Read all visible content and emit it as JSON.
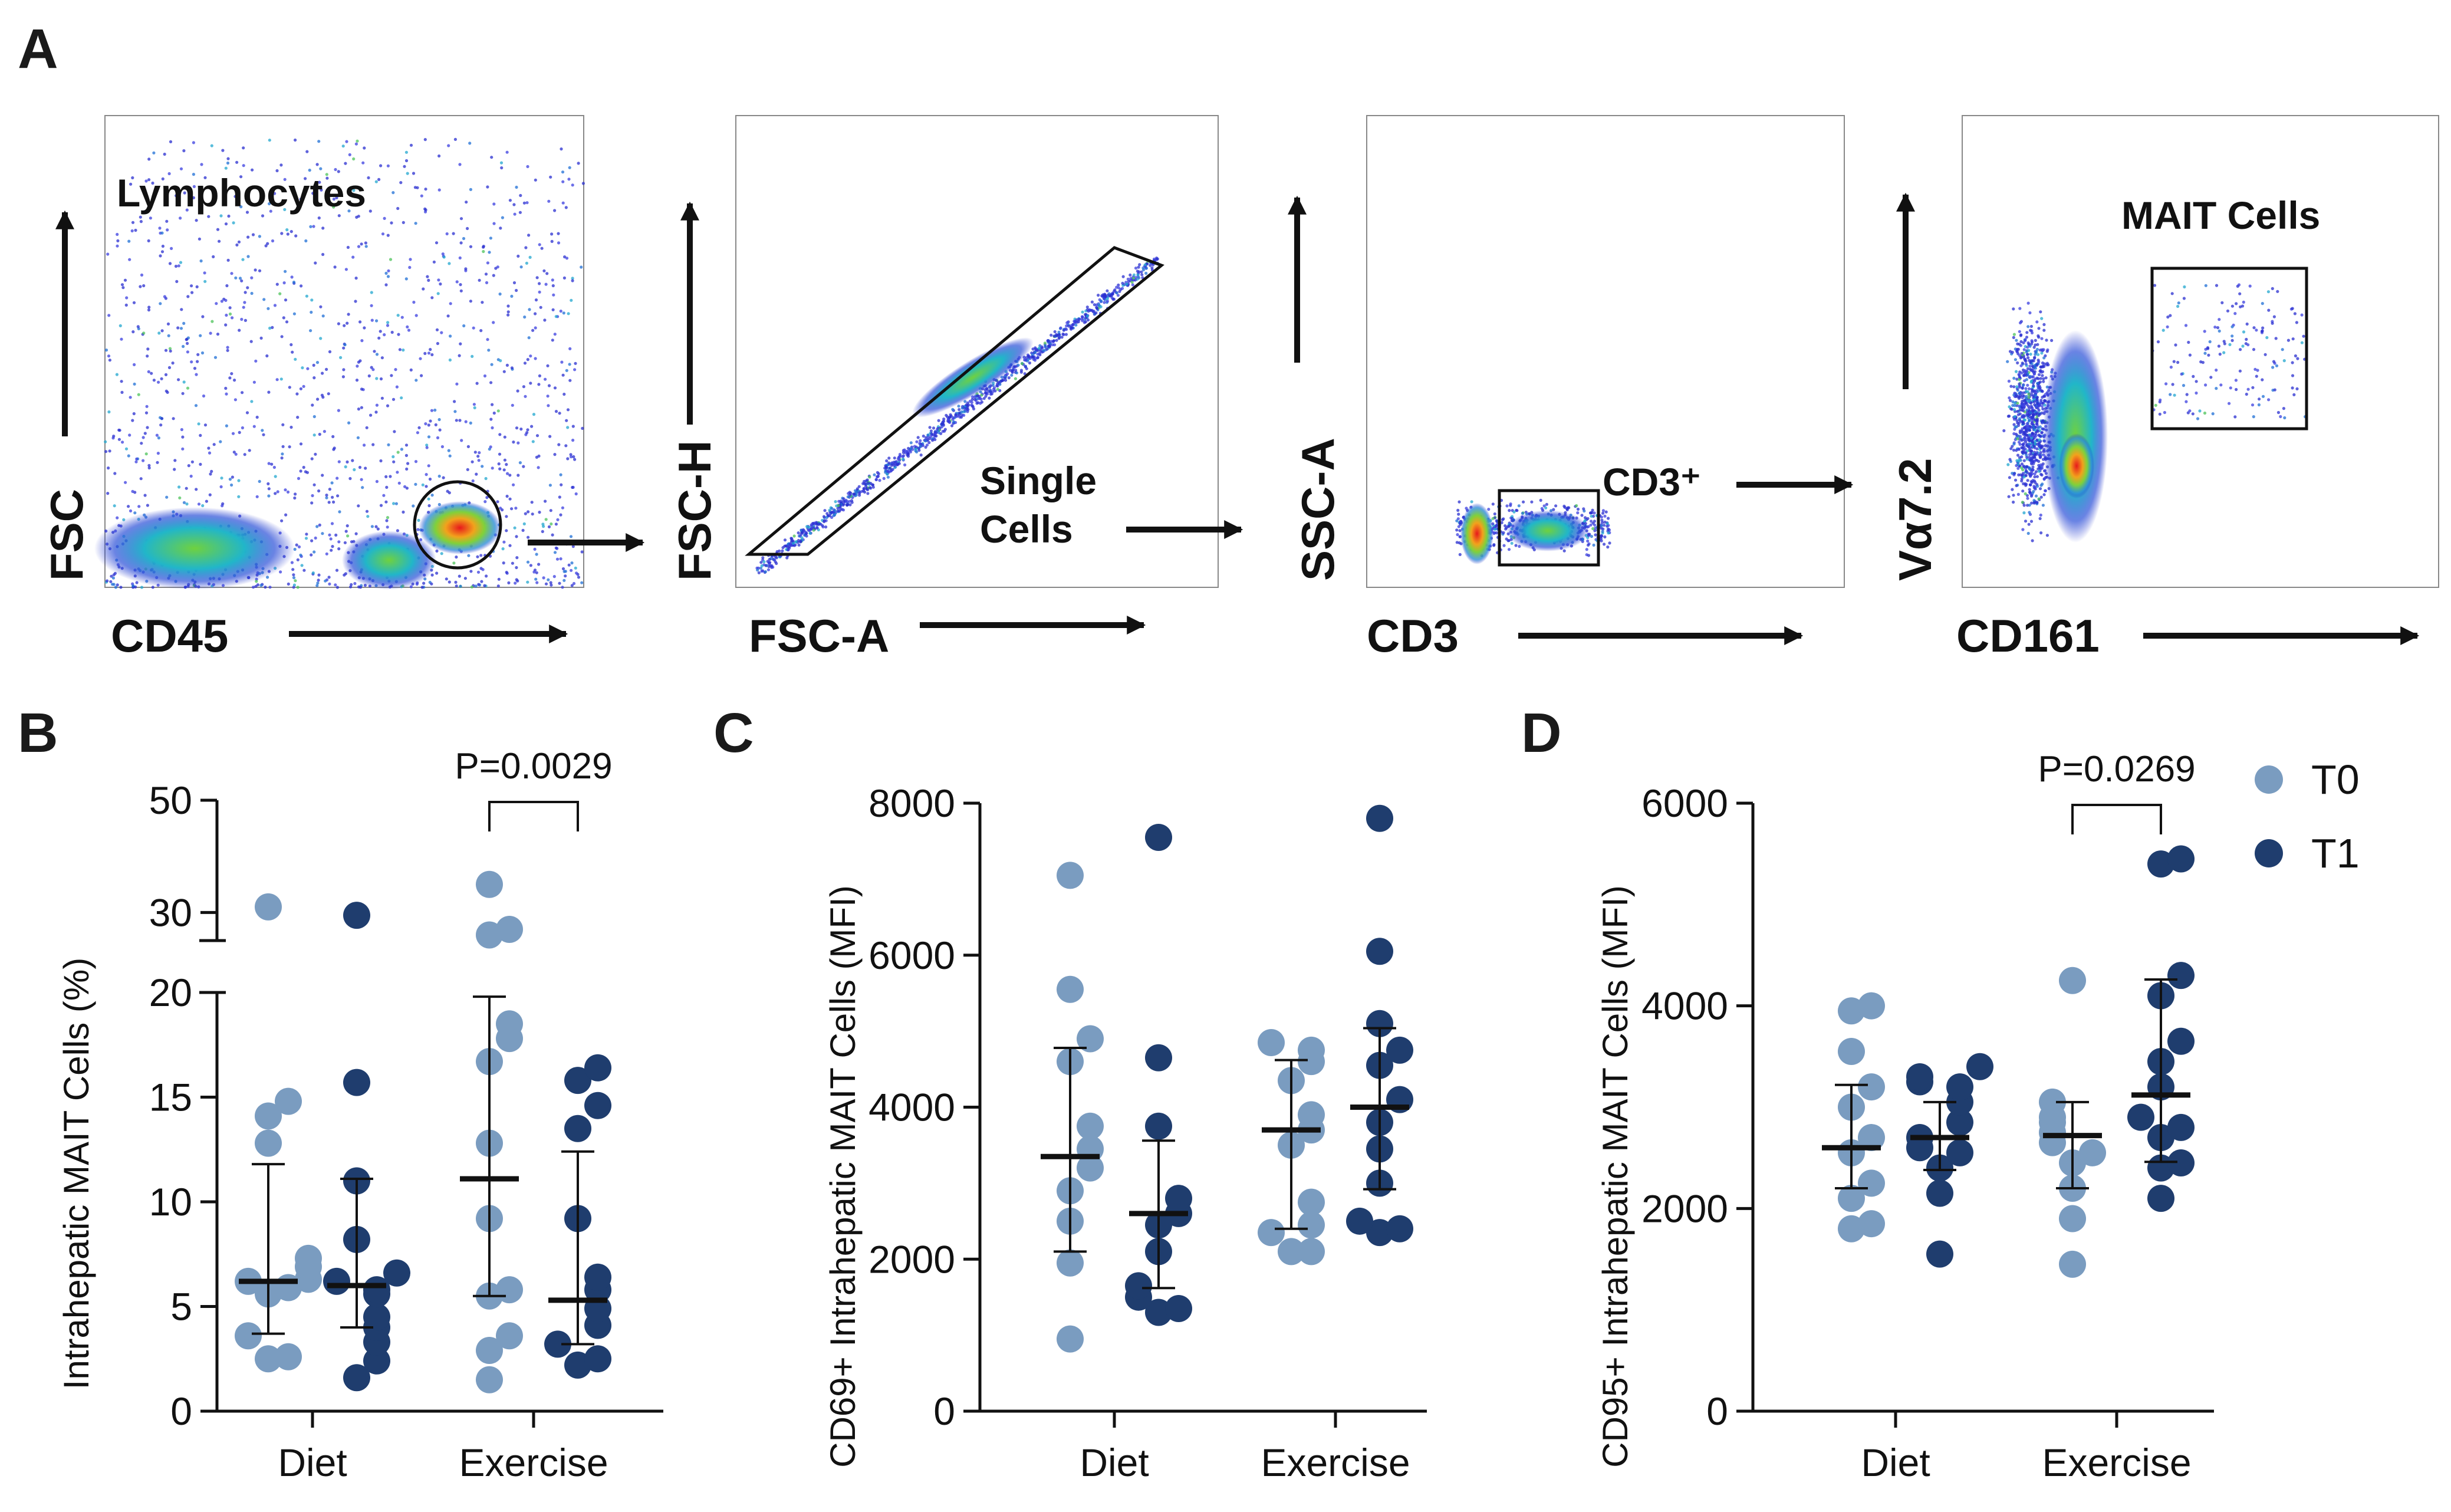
{
  "colors": {
    "t0": "#7a9cc0",
    "t1": "#1f3d6e",
    "axis": "#111111"
  },
  "panel_a": {
    "letter": "A",
    "plots": [
      {
        "id": "cd45",
        "x_label": "CD45",
        "y_label": "FSC",
        "gate_label": "Lymphocytes"
      },
      {
        "id": "fsca",
        "x_label": "FSC-A",
        "y_label": "FSC-H",
        "gate_label": "Single\nCells"
      },
      {
        "id": "cd3",
        "x_label": "CD3",
        "y_label": "SSC-A",
        "gate_label": "CD3⁺"
      },
      {
        "id": "cd161",
        "x_label": "CD161",
        "y_label": "Vα7.2",
        "gate_label": "MAIT Cells"
      }
    ]
  },
  "legend": {
    "entries": [
      "T0",
      "T1"
    ]
  },
  "chart_data": [
    {
      "panel": "B",
      "type": "scatter",
      "ylabel": "Intrahepatic MAIT Cells (%)",
      "categories": [
        "Diet",
        "Exercise"
      ],
      "axis_break": {
        "lower": [
          0,
          20
        ],
        "upper": [
          25,
          50
        ]
      },
      "yticks": [
        0,
        5,
        10,
        15,
        20,
        30,
        50
      ],
      "pvalue": {
        "label": "P=0.0029",
        "category": "Exercise"
      },
      "series": [
        {
          "name": "T0",
          "groups": [
            {
              "category": "Diet",
              "points": [
                31,
                14.8,
                14.1,
                12.8,
                7.3,
                6.9,
                6.3,
                6.2,
                5.9,
                5.6,
                3.6,
                2.6,
                2.5
              ],
              "mean": 6.2,
              "err": [
                3.7,
                11.8
              ]
            },
            {
              "category": "Exercise",
              "points": [
                35,
                27,
                26,
                18.5,
                17.8,
                16.7,
                12.8,
                9.2,
                5.8,
                5.5,
                3.6,
                2.9,
                1.5
              ],
              "mean": 11.1,
              "err": [
                5.5,
                19.8
              ]
            }
          ]
        },
        {
          "name": "T1",
          "groups": [
            {
              "category": "Diet",
              "points": [
                29.5,
                15.7,
                11.0,
                8.2,
                6.6,
                6.2,
                5.8,
                5.6,
                4.5,
                4.0,
                3.3,
                2.4,
                1.6
              ],
              "mean": 6.0,
              "err": [
                4.0,
                11.1
              ]
            },
            {
              "category": "Exercise",
              "points": [
                16.4,
                15.8,
                14.6,
                13.5,
                9.2,
                6.4,
                5.8,
                4.9,
                4.1,
                3.2,
                2.5,
                2.2
              ],
              "mean": 5.3,
              "err": [
                3.2,
                12.4
              ]
            }
          ]
        }
      ]
    },
    {
      "panel": "C",
      "type": "scatter",
      "ylabel": "CD69+ Intrahepatic MAIT Cells (MFI)",
      "categories": [
        "Diet",
        "Exercise"
      ],
      "ylim": [
        0,
        8000
      ],
      "yticks": [
        0,
        2000,
        4000,
        6000,
        8000
      ],
      "series": [
        {
          "name": "T0",
          "groups": [
            {
              "category": "Diet",
              "points": [
                7050,
                5550,
                4900,
                4600,
                3750,
                3450,
                3200,
                2900,
                2500,
                1950,
                950
              ],
              "mean": 3350,
              "err": [
                2100,
                4780
              ]
            },
            {
              "category": "Exercise",
              "points": [
                4850,
                4750,
                4600,
                4350,
                3900,
                3700,
                3500,
                2750,
                2450,
                2350,
                2100,
                2100
              ],
              "mean": 3700,
              "err": [
                2400,
                4620
              ]
            }
          ]
        },
        {
          "name": "T1",
          "groups": [
            {
              "category": "Diet",
              "points": [
                7550,
                4650,
                3750,
                2800,
                2600,
                2450,
                2100,
                1650,
                1500,
                1350,
                1300
              ],
              "mean": 2600,
              "err": [
                1620,
                3560
              ]
            },
            {
              "category": "Exercise",
              "points": [
                7800,
                6050,
                5100,
                4750,
                4550,
                4100,
                3800,
                3450,
                3000,
                2500,
                2400,
                2350
              ],
              "mean": 4000,
              "err": [
                2920,
                5040
              ]
            }
          ]
        }
      ]
    },
    {
      "panel": "D",
      "type": "scatter",
      "ylabel": "CD95+ Intrahepatic MAIT Cells (MFI)",
      "categories": [
        "Diet",
        "Exercise"
      ],
      "ylim": [
        0,
        6000
      ],
      "yticks": [
        0,
        2000,
        4000,
        6000
      ],
      "pvalue": {
        "label": "P=0.0269",
        "category": "Exercise"
      },
      "series": [
        {
          "name": "T0",
          "groups": [
            {
              "category": "Diet",
              "points": [
                4000,
                3950,
                3550,
                3200,
                3000,
                2700,
                2550,
                2250,
                2100,
                1850,
                1800
              ],
              "mean": 2600,
              "err": [
                2200,
                3220
              ]
            },
            {
              "category": "Exercise",
              "points": [
                4250,
                3050,
                2900,
                2850,
                2750,
                2650,
                2550,
                2450,
                2200,
                1900,
                1450
              ],
              "mean": 2720,
              "err": [
                2200,
                3050
              ]
            }
          ]
        },
        {
          "name": "T1",
          "groups": [
            {
              "category": "Diet",
              "points": [
                3400,
                3300,
                3250,
                3200,
                3050,
                2850,
                2700,
                2600,
                2550,
                2400,
                2150,
                1550
              ],
              "mean": 2700,
              "err": [
                2380,
                3050
              ]
            },
            {
              "category": "Exercise",
              "points": [
                5450,
                5400,
                4300,
                4100,
                3650,
                3450,
                3200,
                2900,
                2800,
                2700,
                2450,
                2400,
                2100
              ],
              "mean": 3120,
              "err": [
                2460,
                4260
              ]
            }
          ]
        }
      ]
    }
  ]
}
